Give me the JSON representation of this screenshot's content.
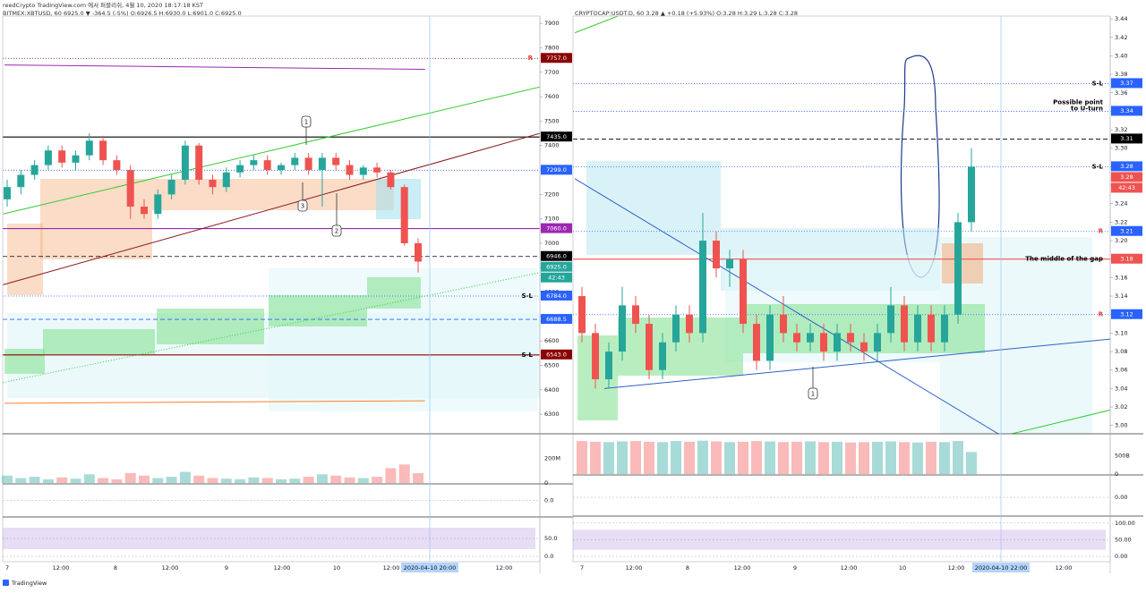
{
  "header": "reedCrypto TradingView.com 에서 퍼블리쉬, 4월 10, 2020 18:17:18 KST",
  "footer": "TradingView",
  "chart_data": [
    {
      "type": "candlestick",
      "title": "BITMEX:XBTUSD, 60 6925.0 ▼ -364.5 (-5%) O:6926.5 H:6930.0 L:6901.0 C:6925.0",
      "up_color": "#26a69a",
      "down_color": "#ef5350",
      "ylim": [
        6220,
        7930
      ],
      "yticks": [
        6300,
        6400,
        6500,
        6600,
        6700,
        6800,
        6900,
        7000,
        7100,
        7200,
        7300,
        7400,
        7500,
        7600,
        7700,
        7800,
        7900
      ],
      "x_labels": [
        "7",
        "12:00",
        "8",
        "12:00",
        "9",
        "12:00",
        "10",
        "12:00",
        "12:00"
      ],
      "cursor_label": "2020-04-10  20:00",
      "open": [
        7180,
        7230,
        7280,
        7320,
        7380,
        7330,
        7360,
        7420,
        7340,
        7300,
        7150,
        7120,
        7200,
        7260,
        7400,
        7260,
        7230,
        7290,
        7320,
        7340,
        7300,
        7320,
        7350,
        7300,
        7350,
        7320,
        7280,
        7310,
        7290,
        7230,
        7000
      ],
      "high": [
        7260,
        7300,
        7340,
        7400,
        7400,
        7380,
        7450,
        7440,
        7360,
        7320,
        7180,
        7220,
        7280,
        7420,
        7410,
        7280,
        7310,
        7340,
        7360,
        7360,
        7330,
        7370,
        7370,
        7370,
        7370,
        7340,
        7320,
        7330,
        7300,
        7240,
        7020
      ],
      "low": [
        7150,
        7200,
        7260,
        7300,
        7310,
        7300,
        7340,
        7320,
        7280,
        7100,
        7100,
        7100,
        7180,
        7240,
        7240,
        7200,
        7210,
        7270,
        7300,
        7280,
        7280,
        7300,
        7280,
        7150,
        7300,
        7260,
        7260,
        7270,
        7220,
        6990,
        6880
      ],
      "close": [
        7230,
        7280,
        7320,
        7380,
        7330,
        7360,
        7420,
        7340,
        7300,
        7150,
        7120,
        7200,
        7260,
        7400,
        7260,
        7230,
        7290,
        7320,
        7340,
        7300,
        7320,
        7350,
        7300,
        7350,
        7320,
        7280,
        7310,
        7290,
        7230,
        7000,
        6925
      ],
      "lines": [
        {
          "color": "#33cc33",
          "style": "solid",
          "x": [
            -0.3,
            38.9
          ],
          "y": [
            7120,
            7640
          ]
        },
        {
          "color": "#8b1a1a",
          "style": "solid",
          "x": [
            -0.3,
            38.9
          ],
          "y": [
            6830,
            7450
          ]
        },
        {
          "color": "#33cc33",
          "style": "dotted",
          "x": [
            -0.3,
            38.9
          ],
          "y": [
            6430,
            6880
          ]
        },
        {
          "color": "#ff7f27",
          "style": "solid",
          "x": [
            -0.2,
            30.5
          ],
          "y": [
            6345,
            6355
          ]
        },
        {
          "color": "#9c27b0",
          "style": "solid",
          "x": [
            -0.2,
            30.5
          ],
          "y": [
            7730,
            7712
          ]
        }
      ],
      "price_labels": [
        {
          "value": 7757,
          "label": "7757.0",
          "color": "#8b0000",
          "line": "dotted",
          "note": "R",
          "note_color": "#e53935"
        },
        {
          "value": 7435,
          "label": "7435.0",
          "color": "#000000",
          "line": "solid"
        },
        {
          "value": 7299,
          "label": "7299.0",
          "color": "#2962ff",
          "line": "dotted"
        },
        {
          "value": 7060,
          "label": "7060.0",
          "color": "#9c27b0",
          "line": "solid"
        },
        {
          "value": 6946,
          "label": "6946.0",
          "color": "#000000",
          "line": "dashed"
        },
        {
          "value": 6925,
          "label": "6925.0",
          "color": "#26a69a",
          "line": "none",
          "countdown": "42:43"
        },
        {
          "value": 6784,
          "label": "6784.0",
          "color": "#2962ff",
          "line": "dotted",
          "note": "S-L",
          "note_color": "#000000"
        },
        {
          "value": 6688.5,
          "label": "6688.5",
          "color": "#2962ff",
          "line": "dashed"
        },
        {
          "value": 6543,
          "label": "6543.0",
          "color": "#8b0000",
          "line": "solid",
          "note": "S-L",
          "note_color": "#000000"
        }
      ],
      "callouts": [
        "1",
        "2",
        "3"
      ],
      "volume": {
        "ylim": [
          0,
          384000000
        ],
        "yticks": [
          {
            "value": 200000000,
            "label": "200M"
          },
          0
        ],
        "values": [
          60000000,
          40000000,
          50000000,
          30000000,
          45000000,
          35000000,
          70000000,
          40000000,
          30000000,
          80000000,
          60000000,
          40000000,
          50000000,
          90000000,
          60000000,
          40000000,
          35000000,
          30000000,
          45000000,
          40000000,
          30000000,
          35000000,
          50000000,
          70000000,
          60000000,
          45000000,
          40000000,
          50000000,
          120000000,
          150000000,
          80000000
        ]
      },
      "macd": {
        "ylim": [
          -1,
          1
        ],
        "yticks": [
          {
            "value": 0,
            "label": "0.0"
          }
        ]
      },
      "stochastic": {
        "ylim": [
          -15,
          105
        ],
        "yticks": [
          {
            "value": 50,
            "label": "50.0"
          },
          {
            "value": 0,
            "label": "0.0"
          }
        ]
      }
    },
    {
      "type": "candlestick",
      "title": "CRYPTOCAP:USDT.D, 60 3.28 ▲ +0.18 (+5.93%) O:3.28 H:3.29 L:3.28 C:3.28",
      "up_color": "#26a69a",
      "down_color": "#ef5350",
      "ylim": [
        2.991,
        3.443
      ],
      "yticks": [
        {
          "value": 3,
          "label": "3.00"
        },
        3.02,
        3.04,
        3.06,
        3.08,
        {
          "value": 3.1,
          "label": "3.10"
        },
        3.12,
        3.14,
        3.16,
        3.18,
        {
          "value": 3.2,
          "label": "3.20"
        },
        3.22,
        3.24,
        3.26,
        3.28,
        {
          "value": 3.3,
          "label": "3.30"
        },
        3.32,
        3.34,
        3.36,
        3.38,
        {
          "value": 3.4,
          "label": "3.40"
        },
        3.42,
        3.44
      ],
      "x_labels": [
        "7",
        "12:00",
        "8",
        "12:00",
        "9",
        "12:00",
        "10",
        "12:00",
        "12:00"
      ],
      "cursor_label": "2020-04-10  22:00",
      "open": [
        3.14,
        3.1,
        3.05,
        3.08,
        3.13,
        3.11,
        3.06,
        3.09,
        3.12,
        3.1,
        3.2,
        3.17,
        3.18,
        3.11,
        3.07,
        3.12,
        3.1,
        3.09,
        3.1,
        3.08,
        3.1,
        3.09,
        3.08,
        3.1,
        3.13,
        3.09,
        3.12,
        3.09,
        3.12,
        3.22
      ],
      "high": [
        3.15,
        3.11,
        3.09,
        3.15,
        3.14,
        3.12,
        3.1,
        3.13,
        3.13,
        3.23,
        3.21,
        3.19,
        3.19,
        3.12,
        3.13,
        3.14,
        3.11,
        3.11,
        3.11,
        3.11,
        3.11,
        3.1,
        3.11,
        3.15,
        3.14,
        3.13,
        3.13,
        3.13,
        3.23,
        3.3
      ],
      "low": [
        3.09,
        3.04,
        3.04,
        3.07,
        3.1,
        3.05,
        3.05,
        3.08,
        3.09,
        3.09,
        3.16,
        3.15,
        3.1,
        3.06,
        3.06,
        3.09,
        3.08,
        3.08,
        3.07,
        3.07,
        3.08,
        3.07,
        3.07,
        3.09,
        3.08,
        3.08,
        3.08,
        3.08,
        3.11,
        3.21
      ],
      "close": [
        3.1,
        3.05,
        3.08,
        3.13,
        3.11,
        3.06,
        3.09,
        3.12,
        3.1,
        3.2,
        3.17,
        3.18,
        3.11,
        3.07,
        3.12,
        3.1,
        3.09,
        3.1,
        3.08,
        3.1,
        3.09,
        3.08,
        3.1,
        3.13,
        3.09,
        3.12,
        3.09,
        3.12,
        3.22,
        3.28
      ],
      "lines": [
        {
          "color": "#3060c8",
          "style": "solid",
          "x": [
            -0.53,
            31
          ],
          "y": [
            3.267,
            2.991
          ]
        },
        {
          "color": "#3060c8",
          "style": "solid",
          "x": [
            1.67,
            39.7
          ],
          "y": [
            3.04,
            3.094
          ]
        },
        {
          "color": "#33cc33",
          "style": "solid",
          "x": [
            32,
            39.7
          ],
          "y": [
            2.991,
            3.018
          ]
        },
        {
          "color": "#33cc33",
          "style": "solid",
          "x": [
            -0.53,
            2.67
          ],
          "y": [
            3.425,
            3.443
          ]
        }
      ],
      "price_labels": [
        {
          "value": 3.37,
          "label": "3.37",
          "color": "#2962ff",
          "line": "dotted",
          "note": "S-L",
          "note_color": "#000000"
        },
        {
          "value": 3.34,
          "label": "3.34",
          "color": "#2962ff",
          "line": "dotted",
          "note": [
            "Possible point",
            "to U-turn"
          ],
          "note_color": "#000000"
        },
        {
          "value": 3.31,
          "label": "3.31",
          "color": "#000000",
          "line": "dashed"
        },
        {
          "value": 3.28,
          "label": "3.28",
          "color": "#2962ff",
          "line": "dotted",
          "note": "S-L",
          "note_color": "#000000"
        },
        {
          "value": 3.28,
          "label": "3.28",
          "color": "#ef5350",
          "line": "none",
          "countdown": "42:43"
        },
        {
          "value": 3.21,
          "label": "3.21",
          "color": "#2962ff",
          "line": "dotted",
          "note": "R",
          "note_color": "#e53935"
        },
        {
          "value": 3.18,
          "label": "3.18",
          "color": "#ef5350",
          "line": "solid",
          "note": "The middle of the gap",
          "note_color": "#000000"
        },
        {
          "value": 3.12,
          "label": "3.12",
          "color": "#2962ff",
          "line": "dotted",
          "note": "R",
          "note_color": "#e53935"
        }
      ],
      "callouts": [
        "1"
      ],
      "volume": {
        "ylim": [
          0,
          975000000000
        ],
        "yticks": [
          {
            "value": 500000000000,
            "label": "500B"
          },
          0
        ],
        "values": [
          900000000000,
          880000000000,
          870000000000,
          890000000000,
          900000000000,
          880000000000,
          870000000000,
          900000000000,
          880000000000,
          910000000000,
          890000000000,
          870000000000,
          880000000000,
          900000000000,
          890000000000,
          870000000000,
          880000000000,
          890000000000,
          870000000000,
          880000000000,
          860000000000,
          870000000000,
          880000000000,
          890000000000,
          870000000000,
          860000000000,
          880000000000,
          870000000000,
          900000000000,
          600000000000
        ]
      },
      "macd": {
        "ylim": [
          -1,
          1
        ],
        "yticks": [
          {
            "value": 0,
            "label": "0.00"
          }
        ]
      },
      "stochastic": {
        "ylim": [
          -16,
          113
        ],
        "yticks": [
          {
            "value": 100,
            "label": "100.00"
          },
          {
            "value": 50,
            "label": "50.00"
          },
          {
            "value": 0,
            "label": "0.00"
          }
        ]
      }
    }
  ]
}
